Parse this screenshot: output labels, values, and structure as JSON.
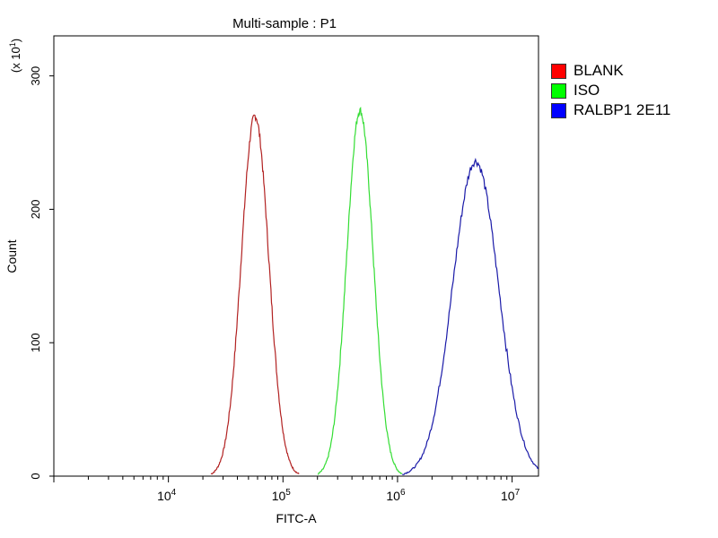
{
  "chart_data": {
    "type": "line",
    "title": "Multi-sample : P1",
    "xlabel": "FITC-A",
    "ylabel": "Count",
    "y_multiplier": "(x 10",
    "y_multiplier_exp": "1",
    "y_multiplier_close": ")",
    "x_scale": "log",
    "xlim": [
      1000,
      17000000
    ],
    "ylim": [
      0,
      330
    ],
    "x_ticks": [
      {
        "value": 10000,
        "base": "10",
        "exp": "4"
      },
      {
        "value": 100000,
        "base": "10",
        "exp": "5"
      },
      {
        "value": 1000000,
        "base": "10",
        "exp": "6"
      },
      {
        "value": 10000000,
        "base": "10",
        "exp": "7"
      }
    ],
    "y_ticks": [
      {
        "value": 0,
        "label": "0"
      },
      {
        "value": 100,
        "label": "100"
      },
      {
        "value": 200,
        "label": "200"
      },
      {
        "value": 300,
        "label": "300"
      }
    ],
    "grid": false,
    "legend_position": "right",
    "series": [
      {
        "name": "BLANK",
        "color": "#b22222",
        "swatch": "#ff0000",
        "peak_x": 57000,
        "peak_y": 270,
        "sigma_log10": 0.12
      },
      {
        "name": "ISO",
        "color": "#33dd33",
        "swatch": "#00ff00",
        "peak_x": 470000,
        "peak_y": 274,
        "sigma_log10": 0.115
      },
      {
        "name": "RALBP1 2E11",
        "color": "#1a1aa8",
        "swatch": "#0000ff",
        "peak_x": 4800000,
        "peak_y": 236,
        "sigma_log10": 0.2
      }
    ]
  }
}
